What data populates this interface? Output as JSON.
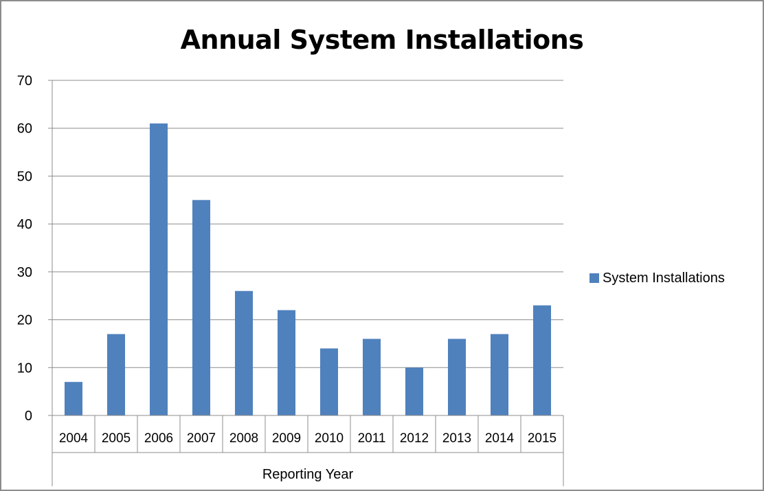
{
  "chart_data": {
    "type": "bar",
    "title": "Annual System Installations",
    "xlabel": "Reporting Year",
    "ylabel": "",
    "ylim": [
      0,
      70
    ],
    "yticks": [
      0,
      10,
      20,
      30,
      40,
      50,
      60,
      70
    ],
    "categories": [
      "2004",
      "2005",
      "2006",
      "2007",
      "2008",
      "2009",
      "2010",
      "2011",
      "2012",
      "2013",
      "2014",
      "2015"
    ],
    "series": [
      {
        "name": "System Installations",
        "values": [
          7,
          17,
          61,
          45,
          26,
          22,
          14,
          16,
          10,
          16,
          17,
          23
        ]
      }
    ],
    "grid": true,
    "legend_position": "right",
    "colors": {
      "bar": "#4f81bd",
      "grid": "#8c8c8c",
      "axis": "#8c8c8c"
    }
  }
}
